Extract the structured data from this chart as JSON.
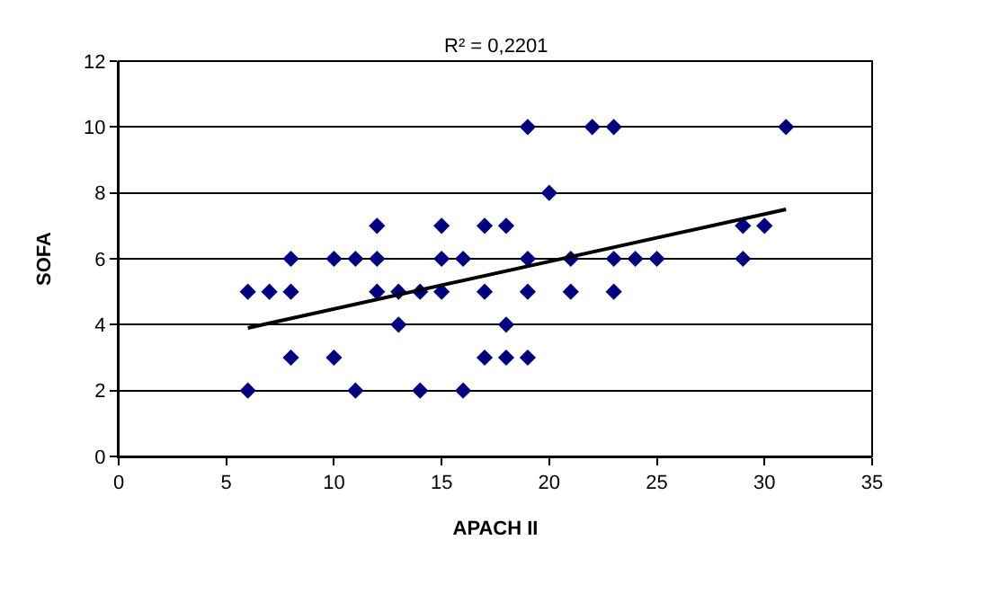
{
  "chart_data": {
    "type": "scatter",
    "xlabel": "APACH II",
    "ylabel": "SOFA",
    "annotations": [
      "R² = 0,2201"
    ],
    "xlim": [
      0,
      35
    ],
    "xticks": [
      0,
      5,
      10,
      15,
      20,
      25,
      30,
      35
    ],
    "ylim": [
      0,
      12
    ],
    "yticks": [
      0,
      2,
      4,
      6,
      8,
      10,
      12
    ],
    "grid": "y",
    "marker": "diamond",
    "series": [
      {
        "color": "#000080",
        "x": [
          6,
          6,
          7,
          8,
          8,
          8,
          10,
          10,
          11,
          11,
          12,
          12,
          12,
          13,
          13,
          14,
          14,
          15,
          15,
          15,
          16,
          16,
          17,
          17,
          17,
          18,
          18,
          18,
          19,
          19,
          19,
          19,
          20,
          21,
          21,
          22,
          23,
          23,
          23,
          24,
          25,
          29,
          29,
          30,
          31
        ],
        "values": [
          5,
          2,
          5,
          6,
          5,
          3,
          6,
          3,
          6,
          2,
          7,
          6,
          5,
          5,
          4,
          5,
          2,
          7,
          6,
          5,
          6,
          2,
          7,
          5,
          3,
          7,
          4,
          3,
          10,
          6,
          5,
          3,
          8,
          6,
          5,
          10,
          10,
          6,
          5,
          6,
          6,
          7,
          6,
          7,
          10
        ]
      },
      {
        "type": "line",
        "marker": "none",
        "color": "#000000",
        "line_style": "solid",
        "x": [
          6,
          31
        ],
        "values": [
          3.9,
          7.5
        ]
      }
    ]
  }
}
